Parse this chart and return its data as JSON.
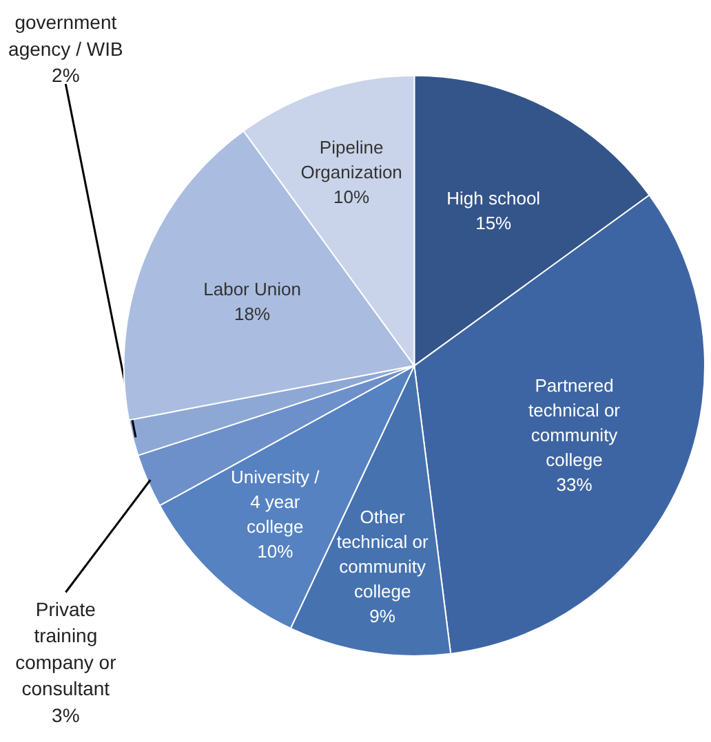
{
  "chart_data": {
    "type": "pie",
    "categories": [
      "High school",
      "Partnered technical or community college",
      "Other technical or community college",
      "University / 4 year college",
      "Private training company or consultant",
      "government agency / WIB",
      "Labor Union",
      "Pipeline Organization"
    ],
    "values": [
      15,
      33,
      9,
      10,
      3,
      2,
      18,
      10
    ],
    "value_labels": [
      "15%",
      "33%",
      "9%",
      "10%",
      "3%",
      "2%",
      "18%",
      "10%"
    ],
    "colors": [
      "#34558a",
      "#3e65a3",
      "#4672b0",
      "#5682c2",
      "#6d90cb",
      "#8ea8d6",
      "#aabde0",
      "#c9d4ea"
    ]
  }
}
